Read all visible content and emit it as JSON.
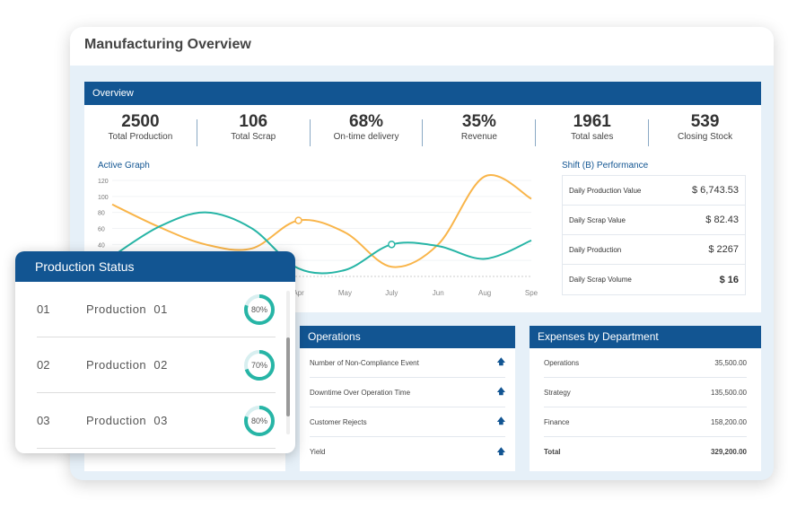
{
  "title": "Manufacturing Overview",
  "overview": {
    "label": "Overview",
    "stats": [
      {
        "value": "2500",
        "label": "Total Production"
      },
      {
        "value": "106",
        "label": "Total Scrap"
      },
      {
        "value": "68%",
        "label": "On-time delivery"
      },
      {
        "value": "35%",
        "label": "Revenue"
      },
      {
        "value": "1961",
        "label": "Total sales"
      },
      {
        "value": "539",
        "label": "Closing Stock"
      }
    ]
  },
  "chart_data": {
    "type": "line",
    "title": "Active Graph",
    "categories": [
      "",
      "",
      "",
      "",
      "Apr",
      "May",
      "July",
      "Jun",
      "Aug",
      "Spe"
    ],
    "yticks": [
      40,
      60,
      80,
      100,
      120
    ],
    "ylim": [
      0,
      120
    ],
    "grid": true,
    "series": [
      {
        "color": "#f9b54a",
        "values": [
          90,
          62,
          40,
          35,
          70,
          55,
          12,
          40,
          125,
          97
        ],
        "marker_index": 4
      },
      {
        "color": "#27b5a6",
        "values": [
          25,
          62,
          80,
          60,
          10,
          8,
          40,
          38,
          22,
          45
        ],
        "marker_index": 6
      }
    ]
  },
  "shift": {
    "title": "Shift (B) Performance",
    "rows": [
      {
        "label": "Daily Production Value",
        "value": "$ 6,743.53"
      },
      {
        "label": "Daily Scrap Value",
        "value": "$ 82.43"
      },
      {
        "label": "Daily Production",
        "value": "$ 2267"
      },
      {
        "label": "Daily Scrap Volume",
        "value": "$ 16"
      }
    ]
  },
  "operations": {
    "title": "Operations",
    "rows": [
      {
        "label": "Number of Non-Compliance Event",
        "icon": "arrow-up"
      },
      {
        "label": "Downtime Over Operation Time",
        "icon": "arrow-up"
      },
      {
        "label": "Customer Rejects",
        "icon": "arrow-up"
      },
      {
        "label": "Yield",
        "icon": "arrow-up"
      }
    ]
  },
  "expenses": {
    "title": "Expenses by Department",
    "rows": [
      {
        "label": "Operations",
        "value": "35,500.00"
      },
      {
        "label": "Strategy",
        "value": "135,500.00"
      },
      {
        "label": "Finance",
        "value": "158,200.00"
      },
      {
        "label": "Total",
        "value": "329,200.00"
      }
    ]
  },
  "production_status": {
    "title": "Production Status",
    "rows": [
      {
        "num": "01",
        "name": "Production  01",
        "percent": 80
      },
      {
        "num": "02",
        "name": "Production  02",
        "percent": 70
      },
      {
        "num": "03",
        "name": "Production  03",
        "percent": 80
      }
    ]
  },
  "colors": {
    "primary": "#125592",
    "teal": "#27b5a6",
    "orange": "#f9b54a"
  }
}
